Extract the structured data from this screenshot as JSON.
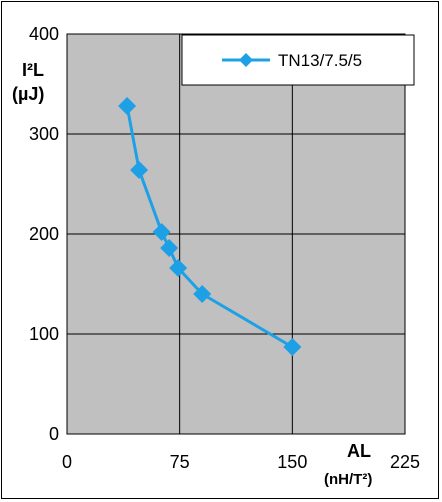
{
  "chart_data": {
    "type": "line",
    "series": [
      {
        "name": "TN13/7.5/5",
        "x": [
          40,
          48,
          63,
          68,
          74,
          90,
          150
        ],
        "y": [
          328,
          264,
          202,
          186,
          166,
          140,
          87
        ],
        "color": "#1ea0e6"
      }
    ],
    "y_axis_label": [
      "I²L",
      "(µJ)"
    ],
    "x_axis_label": [
      "AL",
      "(nH/T²)"
    ],
    "xlim": [
      0,
      225
    ],
    "ylim": [
      0,
      400
    ],
    "x_ticks": [
      0,
      75,
      150,
      225
    ],
    "y_ticks": [
      0,
      100,
      200,
      300,
      400
    ],
    "grid": true,
    "legend_position": "top-right",
    "plot_background": "#c0c0c0"
  }
}
